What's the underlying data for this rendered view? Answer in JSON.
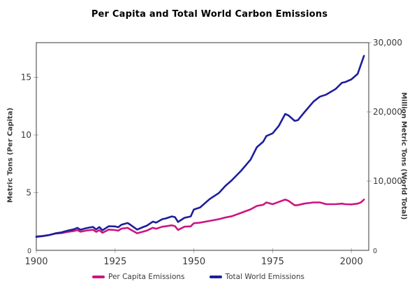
{
  "title": "Per Capita and Total World Carbon Emissions",
  "axes": {
    "left_label": "Metric Tons (Per Capita)",
    "right_label": "Million Metric Tons (World Total)"
  },
  "legend": {
    "items": [
      {
        "label": "Per Capita Emissions",
        "color": "#CC1580"
      },
      {
        "label": "Total World Emissions",
        "color": "#1E1E9C"
      }
    ]
  },
  "colors": {
    "per_capita_line": "#CC1580",
    "total_world_line": "#1E1E9C",
    "plot_border": "#3a3a3a",
    "tick_mark": "#b0b0b0",
    "tick_label": "#3a3a3a",
    "background": "#ffffff"
  },
  "chart_data": {
    "type": "line",
    "title": "Per Capita and Total World Carbon Emissions",
    "grid": false,
    "legend_position": "bottom",
    "x": [
      1900,
      1902,
      1904,
      1906,
      1908,
      1910,
      1912,
      1913,
      1914,
      1916,
      1918,
      1919,
      1920,
      1921,
      1923,
      1925,
      1926,
      1927,
      1929,
      1930,
      1932,
      1934,
      1935,
      1937,
      1938,
      1940,
      1941,
      1943,
      1944,
      1945,
      1947,
      1949,
      1950,
      1952,
      1955,
      1958,
      1960,
      1962,
      1965,
      1968,
      1970,
      1972,
      1973,
      1975,
      1977,
      1979,
      1980,
      1982,
      1983,
      1985,
      1988,
      1990,
      1992,
      1995,
      1997,
      1998,
      2000,
      2002,
      2003,
      2004
    ],
    "series": [
      {
        "name": "Per Capita Emissions",
        "axis": "left",
        "color": "#CC1580",
        "units": "metric tons per capita",
        "values": [
          1.2,
          1.25,
          1.32,
          1.45,
          1.5,
          1.6,
          1.68,
          1.75,
          1.62,
          1.72,
          1.78,
          1.6,
          1.75,
          1.52,
          1.8,
          1.76,
          1.7,
          1.88,
          1.95,
          1.78,
          1.48,
          1.63,
          1.7,
          1.96,
          1.87,
          2.05,
          2.08,
          2.17,
          2.1,
          1.77,
          2.05,
          2.08,
          2.35,
          2.4,
          2.55,
          2.7,
          2.85,
          2.95,
          3.25,
          3.55,
          3.85,
          3.95,
          4.15,
          4.0,
          4.2,
          4.4,
          4.3,
          3.9,
          3.92,
          4.05,
          4.15,
          4.15,
          4.0,
          4.0,
          4.05,
          4.0,
          3.98,
          4.05,
          4.15,
          4.4
        ]
      },
      {
        "name": "Total World Emissions",
        "axis": "right",
        "color": "#1E1E9C",
        "units": "million metric tons",
        "values": [
          1950,
          2050,
          2200,
          2450,
          2600,
          2850,
          3050,
          3250,
          2980,
          3220,
          3380,
          3020,
          3360,
          2900,
          3480,
          3450,
          3330,
          3700,
          3950,
          3650,
          3000,
          3380,
          3550,
          4150,
          4000,
          4500,
          4600,
          4900,
          4800,
          4100,
          4700,
          4900,
          5900,
          6200,
          7400,
          8300,
          9300,
          10100,
          11500,
          13100,
          14900,
          15700,
          16500,
          16900,
          18000,
          19700,
          19500,
          18700,
          18800,
          19900,
          21500,
          22200,
          22500,
          23300,
          24200,
          24300,
          24700,
          25500,
          26800,
          28100
        ]
      }
    ],
    "x_axis": {
      "ticks": [
        1900,
        1925,
        1950,
        1975,
        2000
      ],
      "tick_labels": [
        "1900",
        "1925",
        "1950",
        "1975",
        "2000"
      ],
      "range": [
        1900,
        2005.5
      ]
    },
    "left_axis": {
      "label": "Metric Tons (Per Capita)",
      "ticks": [
        0,
        5,
        10,
        15
      ],
      "tick_labels": [
        "0",
        "5",
        "10",
        "15"
      ],
      "range": [
        0,
        18
      ]
    },
    "right_axis": {
      "label": "Million Metric Tons (World Total)",
      "ticks": [
        0,
        10000,
        20000,
        30000
      ],
      "tick_labels": [
        "0",
        "10,000",
        "20,000",
        "30,000"
      ],
      "range": [
        0,
        30000
      ]
    }
  }
}
